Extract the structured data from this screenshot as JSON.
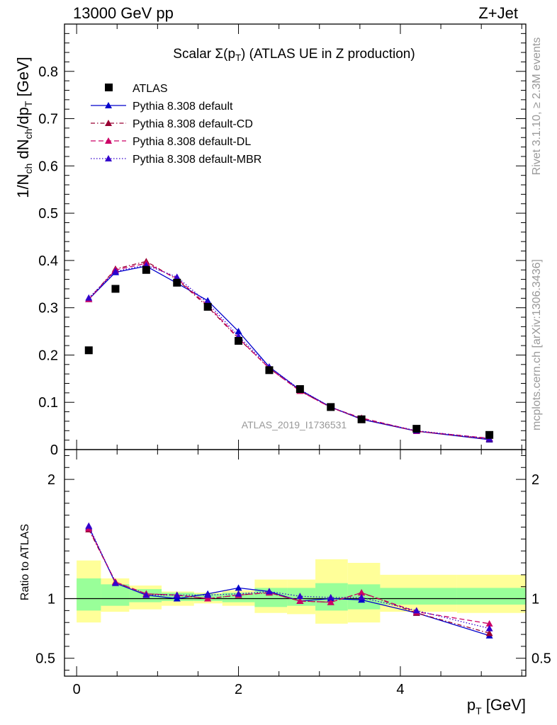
{
  "header": {
    "left": "13000 GeV pp",
    "right": "Z+Jet"
  },
  "side_labels": {
    "rivet": "Rivet 3.1.10, ≥ 2.3M events",
    "mcplots": "mcplots.cern.ch [arXiv:1306.3436]"
  },
  "watermark": "ATLAS_2019_I1736531",
  "chart_data": {
    "type": "line",
    "title": "Scalar Σ(p_T) (ATLAS UE in Z production)",
    "xlabel": "p_T [GeV]",
    "ylabel": "1/N_ch dN_ch/dp_T [GeV]",
    "ratio_ylabel": "Ratio to ATLAS",
    "xlim": [
      -0.15,
      5.55
    ],
    "ylim": [
      0,
      0.9
    ],
    "ratio_ylim": [
      0.35,
      2.25
    ],
    "x_ticks": [
      0,
      2,
      4
    ],
    "y_ticks": [
      0,
      0.1,
      0.2,
      0.3,
      0.4,
      0.5,
      0.6,
      0.7,
      0.8
    ],
    "y_tick_labels": [
      "0",
      "0.1",
      "0.2",
      "0.3",
      "0.4",
      "0.5",
      "0.6",
      "0.7",
      "0.8"
    ],
    "ratio_ticks": [
      0.5,
      1,
      2
    ],
    "ratio_tick_labels": [
      "0.5",
      "1",
      "2"
    ],
    "legend_position": "top-left",
    "data": {
      "name": "ATLAS",
      "x": [
        0.15,
        0.48,
        0.86,
        1.24,
        1.62,
        2.0,
        2.38,
        2.76,
        3.14,
        3.52,
        4.2,
        5.1
      ],
      "y": [
        0.21,
        0.34,
        0.38,
        0.353,
        0.302,
        0.23,
        0.168,
        0.128,
        0.09,
        0.064,
        0.044,
        0.031
      ],
      "bin_edges": [
        0,
        0.3,
        0.65,
        1.05,
        1.45,
        1.8,
        2.2,
        2.6,
        2.95,
        3.35,
        3.75,
        4.7,
        5.55
      ],
      "band_green": [
        [
          0.9,
          1.17
        ],
        [
          0.94,
          1.12
        ],
        [
          0.97,
          1.08
        ],
        [
          0.98,
          1.05
        ],
        [
          0.98,
          1.04
        ],
        [
          0.97,
          1.05
        ],
        [
          0.93,
          1.09
        ],
        [
          0.94,
          1.09
        ],
        [
          0.9,
          1.13
        ],
        [
          0.91,
          1.12
        ],
        [
          0.95,
          1.09
        ],
        [
          0.95,
          1.09
        ]
      ],
      "band_yellow": [
        [
          0.8,
          1.32
        ],
        [
          0.89,
          1.17
        ],
        [
          0.91,
          1.11
        ],
        [
          0.94,
          1.06
        ],
        [
          0.96,
          1.05
        ],
        [
          0.94,
          1.07
        ],
        [
          0.88,
          1.16
        ],
        [
          0.87,
          1.16
        ],
        [
          0.79,
          1.33
        ],
        [
          0.8,
          1.3
        ],
        [
          0.89,
          1.2
        ],
        [
          0.88,
          1.2
        ]
      ]
    },
    "series": [
      {
        "name": "Pythia 8.308 default",
        "color": "#0000cc",
        "dash": "solid",
        "y": [
          0.318,
          0.375,
          0.388,
          0.352,
          0.315,
          0.25,
          0.175,
          0.126,
          0.09,
          0.064,
          0.039,
          0.021
        ],
        "ratio": [
          1.6,
          1.13,
          1.03,
          1.0,
          1.04,
          1.09,
          1.06,
          0.98,
          1.0,
          0.99,
          0.88,
          0.69
        ]
      },
      {
        "name": "Pythia 8.308 default-CD",
        "color": "#990033",
        "dash": "dashdot",
        "y": [
          0.318,
          0.382,
          0.398,
          0.36,
          0.302,
          0.235,
          0.172,
          0.124,
          0.089,
          0.065,
          0.039,
          0.022
        ],
        "ratio": [
          1.58,
          1.14,
          1.04,
          1.03,
          1.0,
          1.03,
          1.05,
          0.98,
          0.97,
          1.05,
          0.88,
          0.71
        ]
      },
      {
        "name": "Pythia 8.308 default-DL",
        "color": "#cc0066",
        "dash": "dash",
        "y": [
          0.318,
          0.38,
          0.394,
          0.362,
          0.305,
          0.236,
          0.172,
          0.124,
          0.089,
          0.067,
          0.039,
          0.024
        ],
        "ratio": [
          1.59,
          1.14,
          1.04,
          1.03,
          1.0,
          1.03,
          1.05,
          0.98,
          0.97,
          1.05,
          0.89,
          0.79
        ]
      },
      {
        "name": "Pythia 8.308 default-MBR",
        "color": "#3300cc",
        "dash": "dotted",
        "y": [
          0.321,
          0.377,
          0.39,
          0.365,
          0.31,
          0.24,
          0.175,
          0.127,
          0.09,
          0.065,
          0.04,
          0.023
        ],
        "ratio": [
          1.61,
          1.13,
          1.03,
          1.03,
          1.03,
          1.04,
          1.06,
          1.02,
          1.01,
          1.01,
          0.9,
          0.75
        ]
      }
    ]
  }
}
